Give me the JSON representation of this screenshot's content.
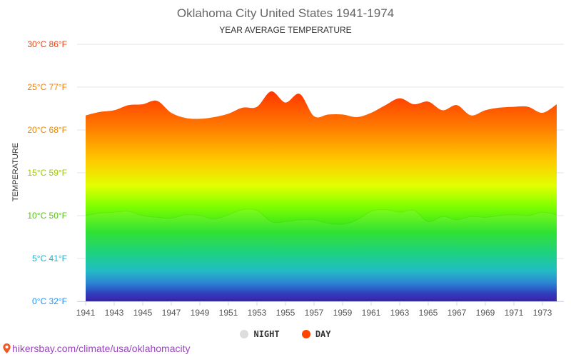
{
  "chart_data": {
    "type": "area",
    "title": "Oklahoma City United States 1941-1974",
    "subtitle": "YEAR AVERAGE TEMPERATURE",
    "ylabel": "TEMPERATURE",
    "x": [
      1941,
      1942,
      1943,
      1944,
      1945,
      1946,
      1947,
      1948,
      1949,
      1950,
      1951,
      1952,
      1953,
      1954,
      1955,
      1956,
      1957,
      1958,
      1959,
      1960,
      1961,
      1962,
      1963,
      1964,
      1965,
      1966,
      1967,
      1968,
      1969,
      1970,
      1971,
      1972,
      1973,
      1974
    ],
    "x_tick_labels": [
      "1941",
      "1943",
      "1945",
      "1947",
      "1949",
      "1951",
      "1953",
      "1955",
      "1957",
      "1959",
      "1961",
      "1963",
      "1965",
      "1967",
      "1969",
      "1971",
      "1973"
    ],
    "y_tick_labels": [
      {
        "value": 0,
        "label": "0°C 32°F",
        "color": "#1e90ff"
      },
      {
        "value": 5,
        "label": "5°C 41°F",
        "color": "#1bb3c9"
      },
      {
        "value": 10,
        "label": "10°C 50°F",
        "color": "#55c50f"
      },
      {
        "value": 15,
        "label": "15°C 59°F",
        "color": "#9cc800"
      },
      {
        "value": 20,
        "label": "20°C 68°F",
        "color": "#e88a00"
      },
      {
        "value": 25,
        "label": "25°C 77°F",
        "color": "#f08000"
      },
      {
        "value": 30,
        "label": "30°C 86°F",
        "color": "#f04010"
      }
    ],
    "ylim": [
      0,
      30
    ],
    "grid": true,
    "legend_position": "bottom-center",
    "series": [
      {
        "name": "NIGHT",
        "color": "#dddddd",
        "values": [
          10.0,
          10.3,
          10.4,
          10.5,
          10.0,
          9.8,
          9.7,
          10.1,
          10.0,
          9.6,
          10.1,
          10.7,
          10.6,
          9.3,
          9.3,
          9.5,
          9.5,
          9.1,
          9.0,
          9.5,
          10.5,
          10.7,
          10.4,
          10.6,
          9.3,
          9.9,
          9.5,
          9.9,
          9.8,
          10.0,
          10.1,
          10.0,
          10.4,
          10.1
        ]
      },
      {
        "name": "DAY",
        "color": "#ff4500",
        "values": [
          21.7,
          22.1,
          22.3,
          22.9,
          23.0,
          23.4,
          22.0,
          21.4,
          21.3,
          21.5,
          21.9,
          22.6,
          22.7,
          24.5,
          23.2,
          24.2,
          21.6,
          21.8,
          21.8,
          21.5,
          22.0,
          22.9,
          23.7,
          23.0,
          23.3,
          22.3,
          22.9,
          21.7,
          22.3,
          22.6,
          22.7,
          22.7,
          22.0,
          23.0
        ]
      }
    ]
  },
  "footer": {
    "text": "hikersbay.com/climate/usa/oklahomacity"
  }
}
